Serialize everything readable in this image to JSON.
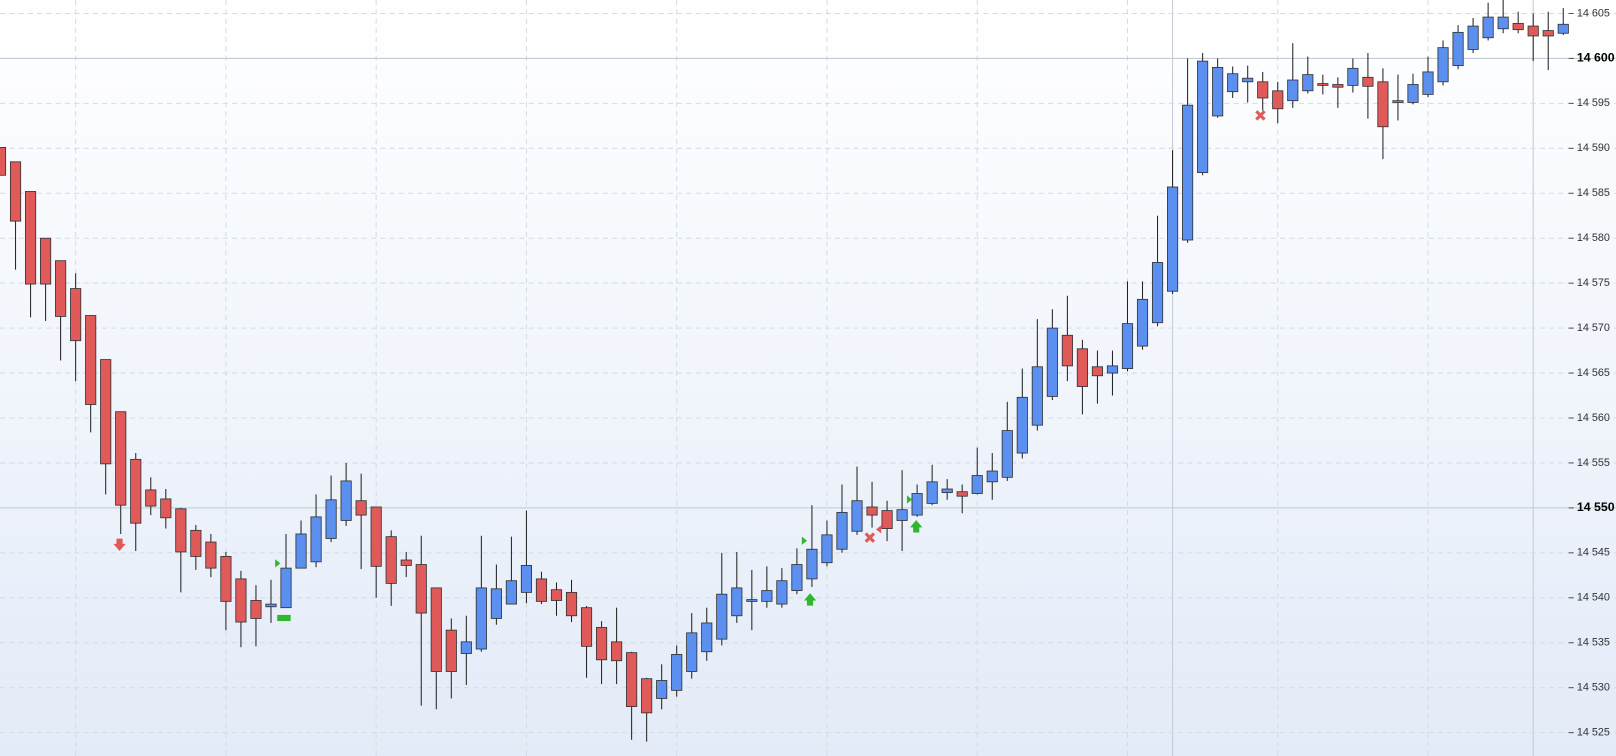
{
  "chart_data": {
    "type": "candlestick",
    "open": [
      14590.1,
      14588.5,
      14585.2,
      14580,
      14577.5,
      14574.4,
      14571.4,
      14566.5,
      14560.7,
      14555.4,
      14552,
      14551,
      14549.9,
      14547.5,
      14546.2,
      14544.6,
      14542.1,
      14539.7,
      14539,
      14538.9,
      14543.3,
      14544,
      14546.6,
      14548.6,
      14550.8,
      14550.1,
      14546.8,
      14544.2,
      14543.7,
      14541.1,
      14536.4,
      14533.8,
      14534.3,
      14537.7,
      14539.3,
      14540.6,
      14542.1,
      14540.9,
      14540.6,
      14538.9,
      14536.7,
      14535.1,
      14533.9,
      14531,
      14528.8,
      14529.7,
      14531.8,
      14534,
      14535.4,
      14538,
      14539.6,
      14539.6,
      14539.3,
      14540.8,
      14542.1,
      14543.9,
      14545.4,
      14547.4,
      14550.1,
      14549.7,
      14548.6,
      14549.2,
      14550.5,
      14551.7,
      14551.8,
      14551.6,
      14552.9,
      14553.4,
      14556.1,
      14559.2,
      14562.4,
      14569.2,
      14567.7,
      14565.7,
      14565,
      14565.5,
      14568,
      14570.6,
      14574.1,
      14579.8,
      14587.3,
      14593.6,
      14596.3,
      14597.4,
      14597.4,
      14596.4,
      14595.3,
      14596.4,
      14597.2,
      14597.1,
      14597,
      14597.9,
      14597.4,
      14595.1,
      14595.1,
      14596,
      14597.4,
      14599.2,
      14601,
      14602.3,
      14603.3,
      14603.9,
      14603.6,
      14603.1,
      14602.8
    ],
    "high": [
      14590.1,
      14588.5,
      14585.2,
      14580,
      14577.5,
      14576.1,
      14571.4,
      14566.5,
      14560.7,
      14556.1,
      14553.4,
      14552.1,
      14550,
      14548.1,
      14547.1,
      14545.1,
      14543,
      14541.4,
      14542,
      14547.1,
      14548.6,
      14551.5,
      14553.6,
      14555,
      14553.8,
      14550.1,
      14547.5,
      14545.1,
      14546.9,
      14541.1,
      14537.7,
      14538,
      14546.9,
      14543.7,
      14546.8,
      14549.7,
      14542.9,
      14541.7,
      14542,
      14539.1,
      14537.4,
      14538.9,
      14534,
      14531.1,
      14532.6,
      14534.7,
      14538.3,
      14538.9,
      14545,
      14545.1,
      14543.1,
      14543.5,
      14543.3,
      14545.5,
      14550.3,
      14548.6,
      14552.6,
      14554.6,
      14552.9,
      14550.8,
      14554.2,
      14552.6,
      14554.8,
      14553.2,
      14552.6,
      14556.7,
      14556.1,
      14561.8,
      14565.5,
      14571,
      14572.1,
      14573.6,
      14568.7,
      14567.5,
      14567.5,
      14575.2,
      14575.2,
      14582.5,
      14589.8,
      14600,
      14600.6,
      14600,
      14599.1,
      14599.2,
      14598.5,
      14597.4,
      14601.7,
      14600.2,
      14598.2,
      14597.9,
      14600,
      14600.6,
      14598.9,
      14598.2,
      14598.3,
      14600.2,
      14602,
      14603.7,
      14604.5,
      14606.2,
      14606.5,
      14605.2,
      14605,
      14605.2,
      14605.6
    ],
    "low": [
      14587,
      14576.5,
      14571.2,
      14570.8,
      14566.4,
      14564.1,
      14558.4,
      14551.5,
      14547.1,
      14545.2,
      14549.2,
      14547.7,
      14540.6,
      14543.1,
      14542.3,
      14536.4,
      14534.5,
      14534.6,
      14537.2,
      14538.9,
      14543.3,
      14543.4,
      14546.2,
      14548,
      14543.2,
      14540,
      14539.1,
      14542.3,
      14528,
      14527.6,
      14528.8,
      14530.3,
      14534,
      14537,
      14539.3,
      14539.4,
      14539.3,
      14538,
      14537.3,
      14531.1,
      14530.4,
      14530.4,
      14524.2,
      14524,
      14527.6,
      14529,
      14531,
      14533,
      14534.7,
      14537.2,
      14536.4,
      14538.9,
      14538.9,
      14540.4,
      14541.2,
      14543.5,
      14545,
      14547,
      14547.8,
      14546.3,
      14545.2,
      14549,
      14550.3,
      14550.9,
      14549.4,
      14551.5,
      14550.9,
      14553,
      14555.5,
      14558.6,
      14562,
      14564.1,
      14560.4,
      14561.6,
      14562.5,
      14565.2,
      14567.6,
      14570.2,
      14573.8,
      14579.5,
      14587,
      14593.4,
      14595.6,
      14595.1,
      14594.2,
      14592.8,
      14594.5,
      14596.1,
      14596,
      14594.5,
      14596.2,
      14593.3,
      14588.8,
      14593.1,
      14594.9,
      14595.7,
      14597,
      14598.8,
      14600.6,
      14602,
      14602.8,
      14602.8,
      14599.7,
      14598.7,
      14602.6
    ],
    "close": [
      14587,
      14581.9,
      14574.9,
      14574.9,
      14571.3,
      14568.6,
      14561.5,
      14554.9,
      14550.3,
      14548.3,
      14550.2,
      14548.9,
      14545.1,
      14544.6,
      14543.3,
      14539.6,
      14537.3,
      14537.7,
      14539.3,
      14543.3,
      14547.1,
      14549,
      14550.9,
      14553,
      14549.2,
      14543.5,
      14541.6,
      14543.6,
      14538.3,
      14531.8,
      14531.8,
      14535.1,
      14541.1,
      14541,
      14541.9,
      14543.6,
      14539.6,
      14539.7,
      14538,
      14534.6,
      14533.1,
      14533,
      14527.9,
      14527.2,
      14530.8,
      14533.7,
      14536.1,
      14537.2,
      14540.4,
      14541.1,
      14539.8,
      14540.8,
      14541.9,
      14543.7,
      14545.4,
      14547,
      14549.5,
      14550.8,
      14549.2,
      14547.7,
      14549.8,
      14551.6,
      14552.9,
      14552.1,
      14551.3,
      14553.6,
      14554.1,
      14558.6,
      14562.3,
      14565.7,
      14570,
      14565.8,
      14563.5,
      14564.7,
      14565.8,
      14570.5,
      14573.2,
      14577.3,
      14585.7,
      14594.8,
      14599.7,
      14599,
      14598.3,
      14597.8,
      14595.6,
      14594.4,
      14597.6,
      14598.2,
      14597,
      14596.8,
      14598.9,
      14596.9,
      14592.4,
      14595.3,
      14597.1,
      14598.5,
      14601.2,
      14602.9,
      14603.6,
      14604.6,
      14604.6,
      14603.2,
      14602.5,
      14602.5,
      14603.8
    ],
    "up_color": "#5b8ff0",
    "down_color": "#e05a5a",
    "ylim": [
      14522.4,
      14606.5
    ],
    "yticks": [
      {
        "value": 14525,
        "label": "14 525"
      },
      {
        "value": 14530,
        "label": "14 530"
      },
      {
        "value": 14535,
        "label": "14 535"
      },
      {
        "value": 14540,
        "label": "14 540"
      },
      {
        "value": 14545,
        "label": "14 545"
      },
      {
        "value": 14550,
        "label": "14 550"
      },
      {
        "value": 14555,
        "label": "14 555"
      },
      {
        "value": 14560,
        "label": "14 560"
      },
      {
        "value": 14565,
        "label": "14 565"
      },
      {
        "value": 14570,
        "label": "14 570"
      },
      {
        "value": 14575,
        "label": "14 575"
      },
      {
        "value": 14580,
        "label": "14 580"
      },
      {
        "value": 14585,
        "label": "14 585"
      },
      {
        "value": 14590,
        "label": "14 590"
      },
      {
        "value": 14595,
        "label": "14 595"
      },
      {
        "value": 14600,
        "label": "14 600"
      },
      {
        "value": 14605,
        "label": "14 605"
      }
    ],
    "grid": true
  }
}
